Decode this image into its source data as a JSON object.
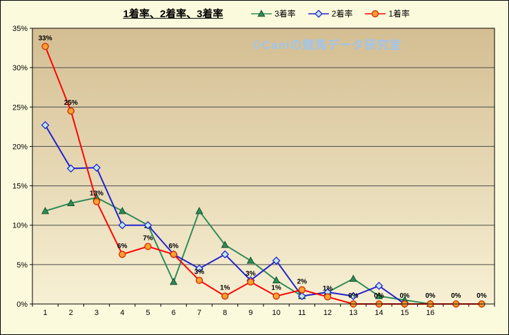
{
  "chart_data": {
    "type": "line",
    "title": "1着率、2着率、3着率",
    "watermark": "©Caniの競馬データ研究室",
    "xlabel": "",
    "ylabel": "",
    "legend_position": "top",
    "grid": "horizontal",
    "ylim": [
      0,
      35
    ],
    "y_step": 5,
    "y_ticks": [
      "0%",
      "5%",
      "10%",
      "15%",
      "20%",
      "25%",
      "30%",
      "35%"
    ],
    "categories": [
      "1",
      "2",
      "3",
      "4",
      "5",
      "6",
      "7",
      "8",
      "9",
      "10",
      "11",
      "12",
      "13",
      "14",
      "15",
      "16",
      "",
      ""
    ],
    "series": [
      {
        "key": "rate3",
        "name": "3着率",
        "marker": "triangle",
        "line_color": "#2E8B57",
        "marker_fill": "#2E8B57",
        "marker_stroke": "#14532D",
        "values": [
          11.8,
          12.8,
          13.5,
          11.8,
          10,
          2.8,
          11.8,
          7.5,
          5.5,
          3,
          1,
          1.5,
          3.2,
          1,
          0.5,
          0,
          null,
          null
        ]
      },
      {
        "key": "rate2",
        "name": "2着率",
        "marker": "diamond",
        "line_color": "#2222CC",
        "marker_fill": "#BFE8F0",
        "marker_stroke": "#2222CC",
        "values": [
          22.7,
          17.2,
          17.3,
          10,
          10,
          6.3,
          4.5,
          6.3,
          3,
          5.5,
          1,
          1.5,
          1,
          2.3,
          0,
          0,
          null,
          null
        ]
      },
      {
        "key": "rate1",
        "name": "1着率",
        "marker": "circle",
        "line_color": "#FF0000",
        "marker_fill": "#FFA033",
        "marker_stroke": "#CC3300",
        "values": [
          32.7,
          24.5,
          13,
          6.3,
          7.3,
          6.3,
          3,
          1,
          2.8,
          1,
          1.8,
          0.9,
          0,
          0,
          0,
          0,
          0,
          0
        ],
        "labels": [
          "33%",
          "25%",
          "13%",
          "6%",
          "7%",
          "6%",
          "3%",
          "1%",
          "3%",
          "1%",
          "2%",
          "1%",
          "0%",
          "0%",
          "0%",
          "0%",
          "0%",
          "0%"
        ]
      }
    ],
    "colors": {
      "background": "#FCFADC",
      "plot_gradient_top": "#D4BE92",
      "plot_gradient_bottom": "#F7F0D4",
      "gridline": "#4A4A4A",
      "axis": "#000000",
      "watermark_color": "#9FC6EF"
    }
  }
}
